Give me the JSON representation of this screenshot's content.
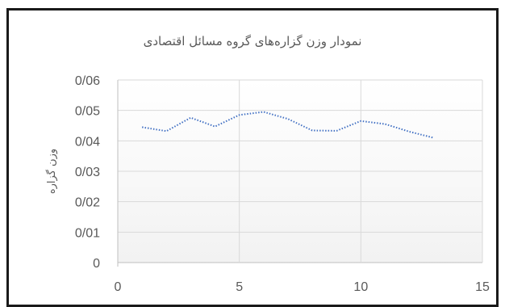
{
  "chart_data": {
    "type": "line",
    "title": "نمودار وزن گزاره‌های گروه مسائل اقتصادی",
    "xlabel": "",
    "ylabel": "وزن گزاره",
    "xlim": [
      0,
      15
    ],
    "ylim": [
      0,
      0.06
    ],
    "x_ticks": [
      0,
      5,
      10,
      15
    ],
    "y_ticks": [
      0,
      0.01,
      0.02,
      0.03,
      0.04,
      0.05,
      0.06
    ],
    "y_tick_labels": [
      "0",
      "0/01",
      "0/02",
      "0/03",
      "0/04",
      "0/05",
      "0/06"
    ],
    "grid": true,
    "series": [
      {
        "x": [
          1,
          2,
          3,
          4,
          5,
          6,
          7,
          8,
          9,
          10,
          11,
          12,
          13
        ],
        "values": [
          0.0445,
          0.0432,
          0.0476,
          0.0447,
          0.0485,
          0.0495,
          0.0472,
          0.0434,
          0.0433,
          0.0465,
          0.0455,
          0.043,
          0.041
        ],
        "color": "#4472c4",
        "style": "dotted"
      }
    ]
  }
}
